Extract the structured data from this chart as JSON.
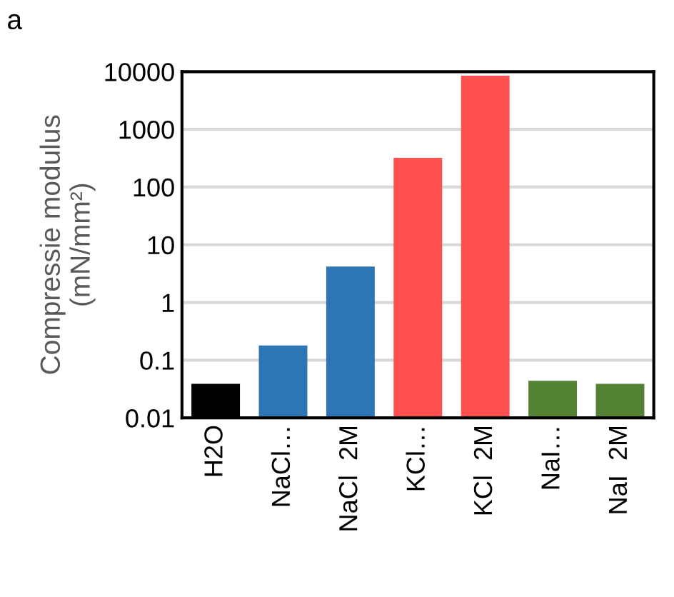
{
  "chart_data": {
    "type": "bar",
    "ylabel": "Compressie modulus\n(mN/mm²)",
    "categories": [
      "H2O",
      "NaCl…",
      "NaCl  2M",
      "KCl…",
      "KCl  2M",
      "NaI…",
      "NaI  2M"
    ],
    "values": [
      0.039,
      0.18,
      4.2,
      320,
      8500,
      0.044,
      0.039
    ],
    "colors": [
      "#000000",
      "#2e75b6",
      "#2e75b6",
      "#ff5050",
      "#ff5050",
      "#548235",
      "#548235"
    ],
    "log": true,
    "ylim": [
      0.01,
      10000
    ],
    "yticks": [
      0.01,
      0.1,
      1,
      10,
      100,
      1000,
      10000
    ],
    "grid": "y",
    "annotations": [
      "a"
    ]
  }
}
